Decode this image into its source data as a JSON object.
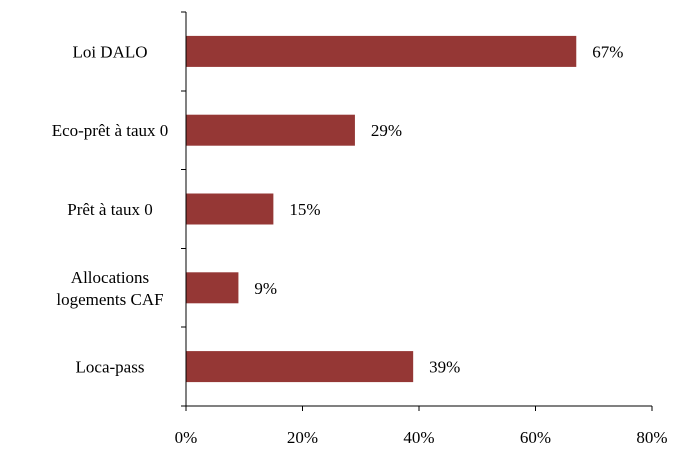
{
  "chart_data": {
    "type": "bar",
    "orientation": "horizontal",
    "title": "",
    "xlabel": "",
    "ylabel": "",
    "categories": [
      "Loi DALO",
      "Eco-prêt à taux 0",
      "Prêt à taux 0",
      "Allocations logements CAF",
      "Loca-pass"
    ],
    "category_lines": [
      [
        "Loi DALO"
      ],
      [
        "Eco-prêt à taux 0"
      ],
      [
        "Prêt à taux 0"
      ],
      [
        "Allocations",
        "logements CAF"
      ],
      [
        "Loca-pass"
      ]
    ],
    "values": [
      67,
      29,
      15,
      9,
      39
    ],
    "value_labels": [
      "67%",
      "29%",
      "15%",
      "9%",
      "39%"
    ],
    "xlim": [
      0,
      80
    ],
    "x_ticks": [
      0,
      20,
      40,
      60,
      80
    ],
    "x_tick_labels": [
      "0%",
      "20%",
      "40%",
      "60%",
      "80%"
    ],
    "bar_color": "#953735",
    "grid": false,
    "legend": "none"
  }
}
